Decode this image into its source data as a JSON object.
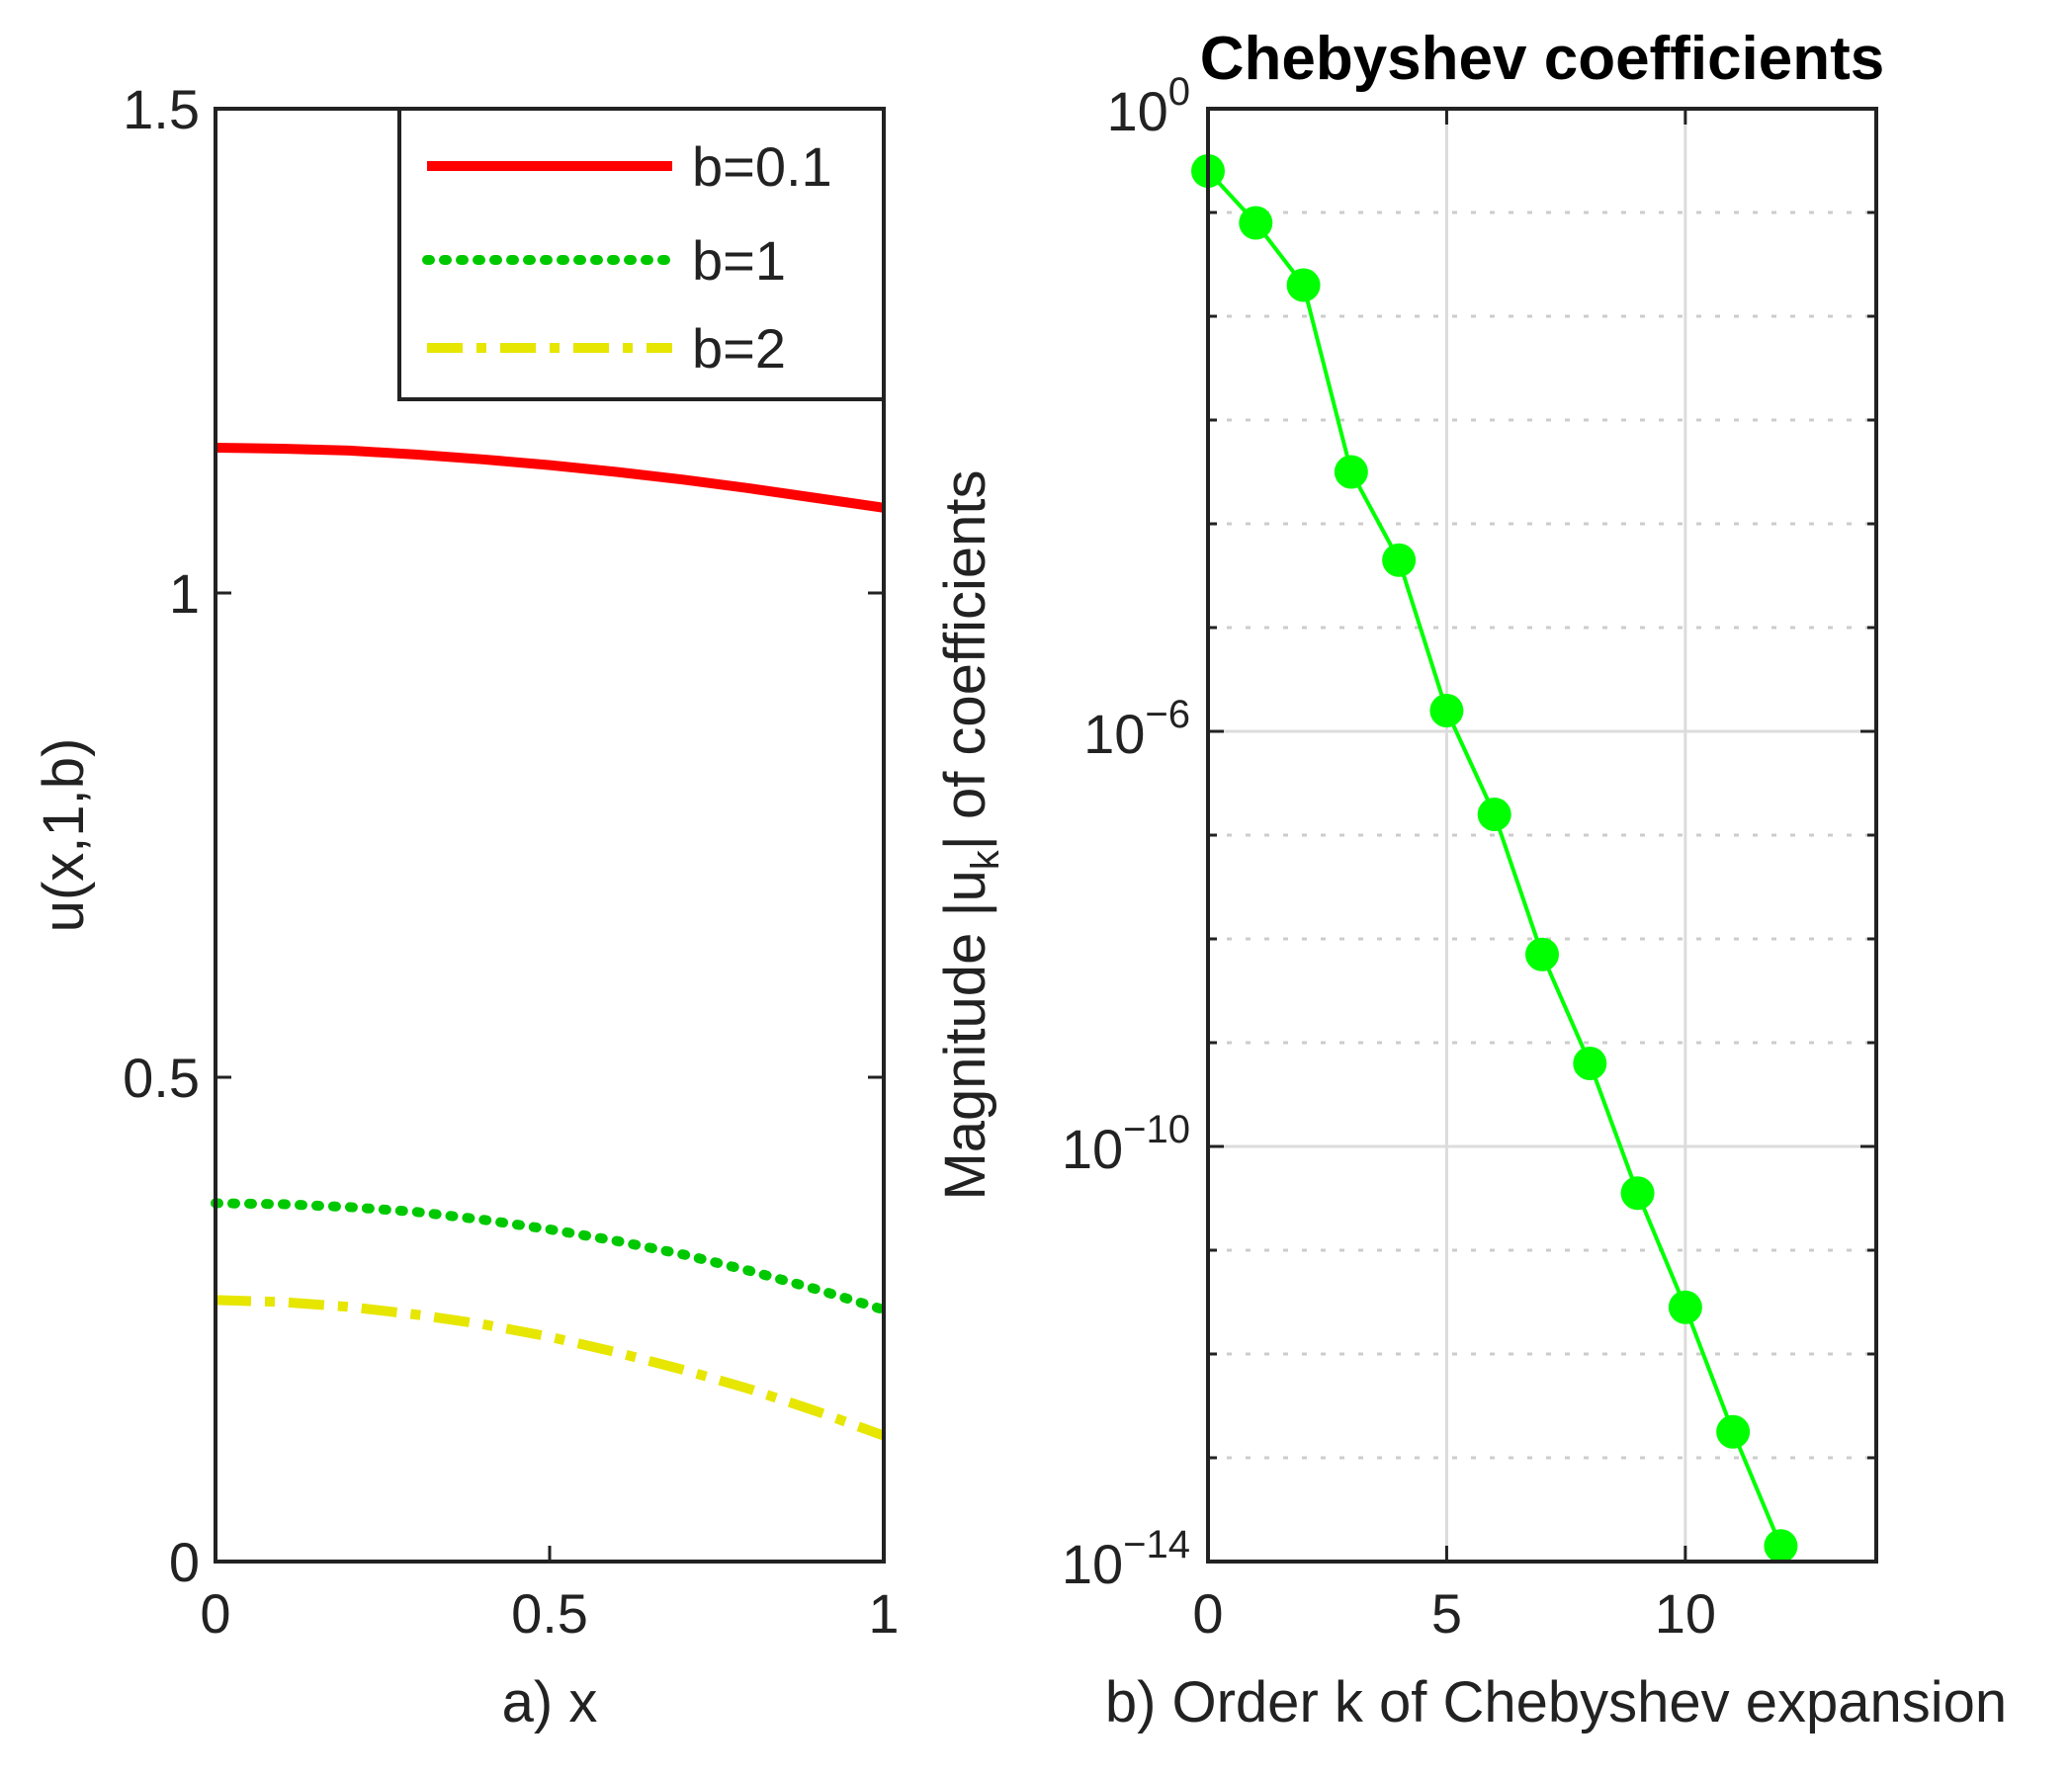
{
  "chart_data": [
    {
      "type": "line",
      "title": "",
      "xlabel": "a) x",
      "ylabel": "u(x,1,b)",
      "xlim": [
        0,
        1
      ],
      "ylim": [
        0,
        1.5
      ],
      "x_ticks": [
        0,
        0.5,
        1
      ],
      "x_tick_labels": [
        "0",
        "0.5",
        "1"
      ],
      "y_ticks": [
        0,
        0.5,
        1,
        1.5
      ],
      "y_tick_labels": [
        "0",
        "0.5",
        "1",
        "1.5"
      ],
      "grid": false,
      "legend_position": "top-right",
      "series": [
        {
          "name": "b=0.1",
          "color": "#ff0000",
          "style": "solid",
          "x": [
            0,
            0.1,
            0.2,
            0.3,
            0.4,
            0.5,
            0.6,
            0.7,
            0.8,
            0.9,
            1.0
          ],
          "y": [
            1.15,
            1.149,
            1.147,
            1.143,
            1.138,
            1.132,
            1.125,
            1.117,
            1.108,
            1.098,
            1.088
          ]
        },
        {
          "name": "b=1",
          "color": "#00c800",
          "style": "dotted",
          "x": [
            0,
            0.1,
            0.2,
            0.3,
            0.4,
            0.5,
            0.6,
            0.7,
            0.8,
            0.9,
            1.0
          ],
          "y": [
            0.37,
            0.369,
            0.366,
            0.361,
            0.353,
            0.343,
            0.331,
            0.317,
            0.3,
            0.281,
            0.26
          ]
        },
        {
          "name": "b=2",
          "color": "#e6e600",
          "style": "dashdot",
          "x": [
            0,
            0.1,
            0.2,
            0.3,
            0.4,
            0.5,
            0.6,
            0.7,
            0.8,
            0.9,
            1.0
          ],
          "y": [
            0.27,
            0.268,
            0.263,
            0.255,
            0.245,
            0.232,
            0.216,
            0.198,
            0.178,
            0.155,
            0.13
          ]
        }
      ]
    },
    {
      "type": "line",
      "title": "Chebyshev coefficients",
      "xlabel": "b) Order k of Chebyshev expansion",
      "ylabel_main": "Magnitude |u",
      "ylabel_sub": "k",
      "ylabel_tail": "| of coefficients",
      "xlim": [
        0,
        14
      ],
      "ylim_log10": [
        -14,
        0
      ],
      "yscale": "log",
      "x_ticks": [
        0,
        5,
        10
      ],
      "x_tick_labels": [
        "0",
        "5",
        "10"
      ],
      "y_ticks": [
        {
          "base": "10",
          "exp": "0",
          "log10": 0
        },
        {
          "base": "10",
          "exp": "−6",
          "log10": -6
        },
        {
          "base": "10",
          "exp": "−10",
          "log10": -10
        },
        {
          "base": "10",
          "exp": "−14",
          "log10": -14
        }
      ],
      "grid": true,
      "series": [
        {
          "name": "coefficients",
          "color": "#00ff00",
          "marker": "circle",
          "x": [
            0,
            1,
            2,
            3,
            4,
            5,
            6,
            7,
            8,
            9,
            10,
            11,
            12
          ],
          "log10_y": [
            -0.6,
            -1.1,
            -1.7,
            -3.5,
            -4.35,
            -5.8,
            -6.8,
            -8.15,
            -9.2,
            -10.45,
            -11.55,
            -12.75,
            -13.85
          ]
        }
      ]
    }
  ]
}
